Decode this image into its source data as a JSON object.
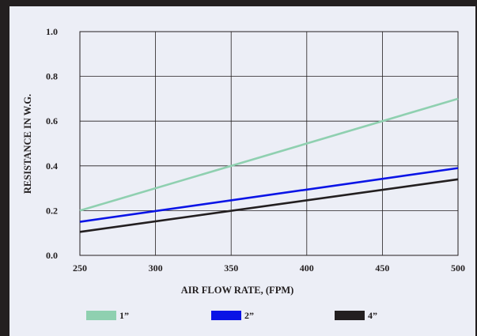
{
  "chart_data": {
    "type": "line",
    "xlabel": "AIR FLOW RATE, (FPM)",
    "ylabel": "RESISTANCE IN W.G.",
    "xlim": [
      250,
      500
    ],
    "ylim": [
      0.0,
      1.0
    ],
    "x_ticks": [
      "250",
      "300",
      "350",
      "400",
      "450",
      "500"
    ],
    "y_ticks": [
      "0.0",
      "0.2",
      "0.4",
      "0.6",
      "0.8",
      "1.0"
    ],
    "grid": true,
    "legend_position": "bottom",
    "series": [
      {
        "name": "1”",
        "color": "#8fd0b0",
        "x": [
          250,
          500
        ],
        "y": [
          0.2,
          0.7
        ]
      },
      {
        "name": "2”",
        "color": "#0a14e6",
        "x": [
          250,
          500
        ],
        "y": [
          0.15,
          0.39
        ]
      },
      {
        "name": "4”",
        "color": "#231f20",
        "x": [
          250,
          500
        ],
        "y": [
          0.105,
          0.34
        ]
      }
    ]
  }
}
